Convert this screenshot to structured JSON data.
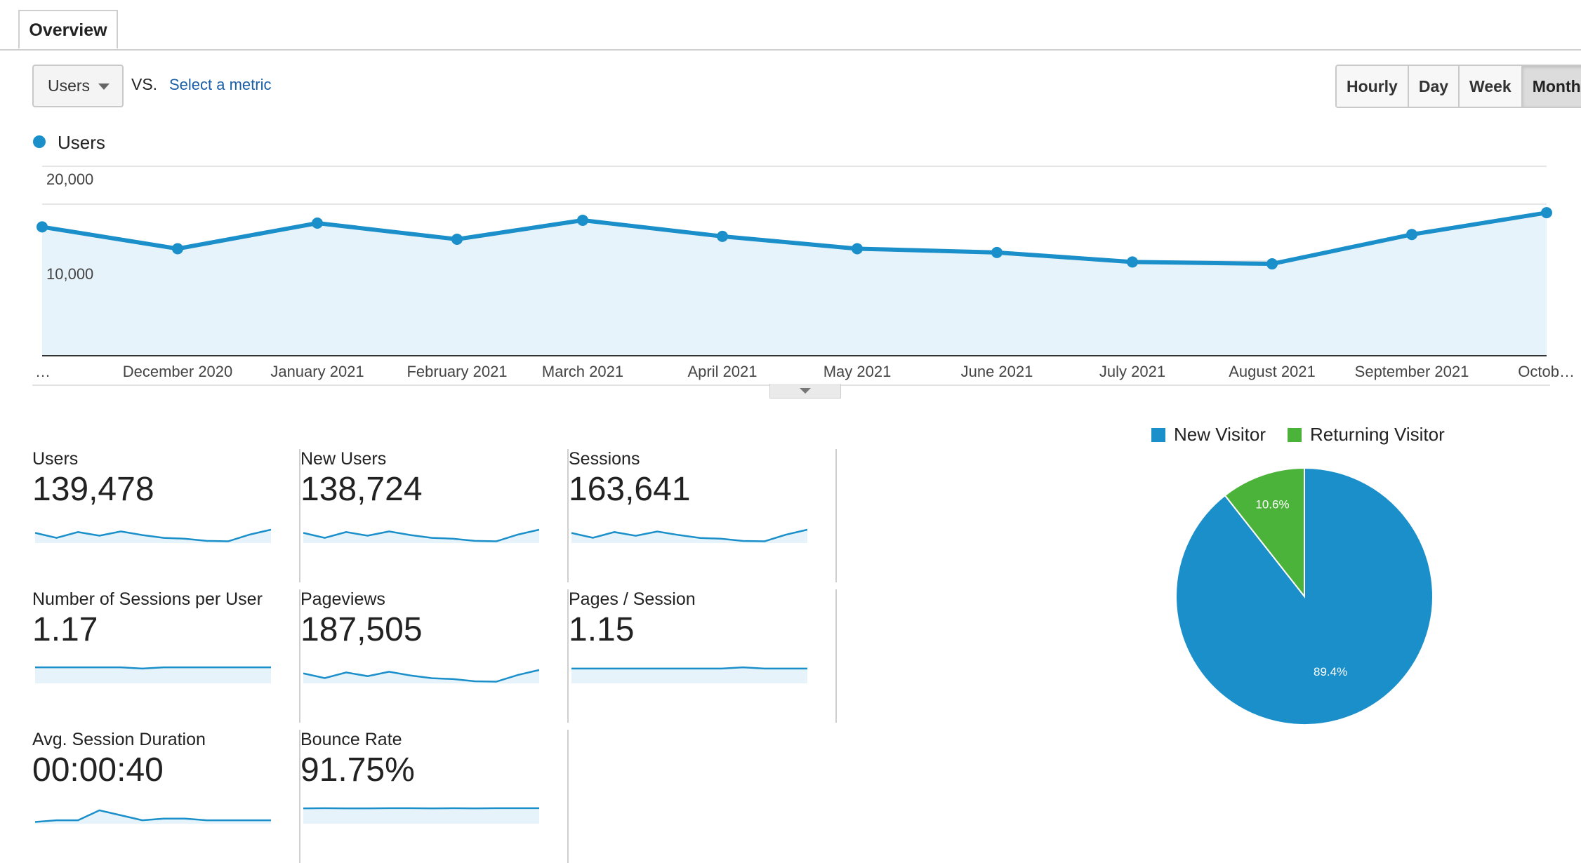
{
  "tab": {
    "label": "Overview"
  },
  "controls": {
    "metric_selected": "Users",
    "vs_label": "VS.",
    "select_metric_link": "Select a metric",
    "granularity": [
      "Hourly",
      "Day",
      "Week",
      "Month"
    ],
    "granularity_active": "Month"
  },
  "colors": {
    "accent": "#1a8fc9",
    "fill": "#e7f3fa",
    "returning": "#4cb33a"
  },
  "chart_data": [
    {
      "type": "area",
      "series": [
        {
          "name": "Users",
          "values": [
            13600,
            11300,
            14000,
            12300,
            14300,
            12600,
            11300,
            10900,
            9900,
            9700,
            12800,
            15100
          ]
        }
      ],
      "categories": [
        "…",
        "December 2020",
        "January 2021",
        "February 2021",
        "March 2021",
        "April 2021",
        "May 2021",
        "June 2021",
        "July 2021",
        "August 2021",
        "September 2021",
        "Octob…"
      ],
      "ytick_labels": [
        "20,000",
        "10,000"
      ],
      "ylim": [
        0,
        20000
      ],
      "legend": "top-left",
      "grid": true
    },
    {
      "type": "pie",
      "legend": "top",
      "slices": [
        {
          "name": "New Visitor",
          "value": 89.4,
          "label": "89.4%",
          "color": "#1a8fc9"
        },
        {
          "name": "Returning Visitor",
          "value": 10.6,
          "label": "10.6%",
          "color": "#4cb33a"
        }
      ]
    }
  ],
  "scorecards": [
    {
      "label": "Users",
      "value": "139,478",
      "spark": [
        13600,
        11300,
        14000,
        12300,
        14300,
        12600,
        11300,
        10900,
        9900,
        9700,
        12800,
        15100
      ]
    },
    {
      "label": "New Users",
      "value": "138,724",
      "spark": [
        13500,
        11200,
        13900,
        12200,
        14200,
        12500,
        11200,
        10800,
        9800,
        9600,
        12700,
        15000
      ]
    },
    {
      "label": "Sessions",
      "value": "163,641",
      "spark": [
        15900,
        13300,
        16400,
        14400,
        16700,
        14800,
        13200,
        12800,
        11600,
        11400,
        15000,
        17700
      ]
    },
    {
      "label": "Number of Sessions per User",
      "value": "1.17",
      "spark": [
        1.17,
        1.17,
        1.17,
        1.17,
        1.17,
        1.16,
        1.17,
        1.17,
        1.17,
        1.17,
        1.17,
        1.17
      ]
    },
    {
      "label": "Pageviews",
      "value": "187,505",
      "spark": [
        18200,
        15300,
        18800,
        16500,
        19200,
        16900,
        15200,
        14700,
        13300,
        13100,
        17200,
        20300
      ]
    },
    {
      "label": "Pages / Session",
      "value": "1.15",
      "spark": [
        1.15,
        1.15,
        1.15,
        1.15,
        1.15,
        1.15,
        1.15,
        1.15,
        1.16,
        1.15,
        1.15,
        1.15
      ]
    },
    {
      "label": "Avg. Session Duration",
      "value": "00:00:40",
      "spark": [
        38,
        39,
        39,
        45,
        42,
        39,
        40,
        40,
        39,
        39,
        39,
        39
      ]
    },
    {
      "label": "Bounce Rate",
      "value": "91.75%",
      "spark": [
        91.7,
        91.8,
        91.7,
        91.7,
        91.8,
        91.8,
        91.7,
        91.8,
        91.7,
        91.8,
        91.8,
        91.8
      ]
    }
  ]
}
